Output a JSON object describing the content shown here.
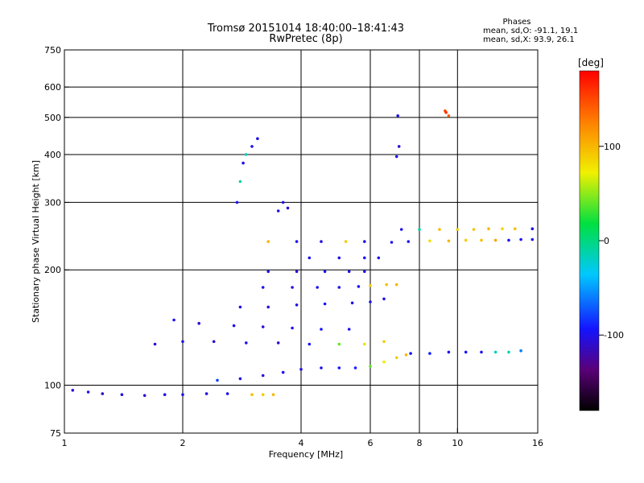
{
  "header": {
    "title_line1": "Tromsø 20151014 18:40:00–18:41:43",
    "title_line2": "RwPretec (8p)",
    "stats_label": "Phases",
    "stats_o": "mean, sd,O: -91.1, 19.1",
    "stats_x": "mean, sd,X: 93.9, 26.1"
  },
  "colorbar": {
    "label": "[deg]",
    "ticks": [
      {
        "value": 100,
        "label": "100"
      },
      {
        "value": 0,
        "label": "0"
      },
      {
        "value": -100,
        "label": "-100"
      }
    ],
    "range": [
      -180,
      180
    ]
  },
  "chart_data": {
    "type": "scatter",
    "xlabel": "Frequency [MHz]",
    "ylabel": "Stationary phase Virtual Height [km]",
    "xscale": "log",
    "yscale": "log",
    "xlim": [
      1,
      16
    ],
    "ylim": [
      75,
      750
    ],
    "xticks": [
      {
        "value": 1,
        "label": "1"
      },
      {
        "value": 2,
        "label": "2"
      },
      {
        "value": 4,
        "label": "4"
      },
      {
        "value": 6,
        "label": "6"
      },
      {
        "value": 8,
        "label": "8"
      },
      {
        "value": 10,
        "label": "10"
      },
      {
        "value": 16,
        "label": "16"
      }
    ],
    "yticks": [
      {
        "value": 75,
        "label": "75"
      },
      {
        "value": 100,
        "label": "100"
      },
      {
        "value": 200,
        "label": "200"
      },
      {
        "value": 300,
        "label": "300"
      },
      {
        "value": 400,
        "label": "400"
      },
      {
        "value": 500,
        "label": "500"
      },
      {
        "value": 600,
        "label": "600"
      },
      {
        "value": 750,
        "label": "750"
      }
    ],
    "grid_x": [
      2,
      4,
      6,
      8,
      10
    ],
    "grid_y": [
      100,
      200,
      300,
      400,
      500,
      600
    ],
    "grid": true,
    "color_variable": "phase [deg]",
    "series": [
      {
        "name": "",
        "points": [
          [
            1.05,
            97,
            -105
          ],
          [
            1.15,
            96,
            -100
          ],
          [
            1.25,
            95,
            -110
          ],
          [
            1.4,
            94.5,
            -100
          ],
          [
            1.6,
            94,
            -108
          ],
          [
            1.8,
            94.5,
            -102
          ],
          [
            2.0,
            94.5,
            -100
          ],
          [
            2.3,
            95,
            -105
          ],
          [
            2.6,
            95,
            -100
          ]
        ]
      },
      {
        "name": "",
        "points": [
          [
            3.0,
            94.5,
            95
          ],
          [
            3.2,
            94.5,
            90
          ],
          [
            3.4,
            94.5,
            100
          ]
        ]
      },
      {
        "name": "",
        "points": [
          [
            2.45,
            103,
            -80
          ],
          [
            2.8,
            104,
            -100
          ],
          [
            3.2,
            106,
            -105
          ],
          [
            3.6,
            108,
            -100
          ],
          [
            4.0,
            110,
            -105
          ],
          [
            4.5,
            111,
            -100
          ],
          [
            5.0,
            111,
            -95
          ],
          [
            5.5,
            111,
            -90
          ]
        ]
      },
      {
        "name": "",
        "points": [
          [
            6.0,
            112,
            40
          ],
          [
            6.5,
            115,
            75
          ],
          [
            7.0,
            118,
            90
          ],
          [
            7.4,
            120,
            100
          ]
        ]
      },
      {
        "name": "",
        "points": [
          [
            7.6,
            121,
            -100
          ],
          [
            8.5,
            121,
            -90
          ],
          [
            9.5,
            122,
            -100
          ],
          [
            10.5,
            122,
            -95
          ],
          [
            11.5,
            122,
            -100
          ],
          [
            12.5,
            122,
            -20
          ],
          [
            13.5,
            122,
            -15
          ],
          [
            14.5,
            123,
            -60
          ]
        ]
      },
      {
        "name": "",
        "points": [
          [
            1.7,
            128,
            -105
          ],
          [
            2.0,
            130,
            -100
          ],
          [
            2.4,
            130,
            -110
          ],
          [
            2.9,
            129,
            -100
          ],
          [
            3.5,
            129,
            -105
          ],
          [
            4.2,
            128,
            -95
          ],
          [
            5.0,
            128,
            40
          ],
          [
            5.8,
            128,
            80
          ],
          [
            6.5,
            130,
            90
          ]
        ]
      },
      {
        "name": "",
        "points": [
          [
            1.9,
            148,
            -100
          ],
          [
            2.2,
            145,
            -105
          ],
          [
            2.7,
            143,
            -100
          ],
          [
            3.2,
            142,
            -105
          ],
          [
            3.8,
            141,
            -100
          ],
          [
            4.5,
            140,
            -95
          ],
          [
            5.3,
            140,
            -100
          ]
        ]
      },
      {
        "name": "",
        "points": [
          [
            2.8,
            160,
            -100
          ],
          [
            3.3,
            160,
            -105
          ],
          [
            3.9,
            162,
            -100
          ],
          [
            4.6,
            163,
            -95
          ],
          [
            5.4,
            164,
            -100
          ],
          [
            6.0,
            165,
            -100
          ],
          [
            6.5,
            168,
            -100
          ]
        ]
      },
      {
        "name": "",
        "points": [
          [
            3.2,
            180,
            -100
          ],
          [
            3.8,
            180,
            -105
          ],
          [
            4.4,
            180,
            -100
          ],
          [
            5.0,
            180,
            -100
          ],
          [
            5.6,
            181,
            -95
          ],
          [
            6.0,
            182,
            90
          ],
          [
            6.6,
            183,
            95
          ],
          [
            7.0,
            183,
            100
          ]
        ]
      },
      {
        "name": "",
        "points": [
          [
            3.3,
            198,
            -100
          ],
          [
            3.9,
            198,
            -105
          ],
          [
            4.6,
            198,
            -95
          ],
          [
            5.3,
            198,
            -100
          ],
          [
            5.8,
            198,
            -100
          ]
        ]
      },
      {
        "name": "",
        "points": [
          [
            4.2,
            215,
            -100
          ],
          [
            5.0,
            215,
            -100
          ],
          [
            5.8,
            215,
            -95
          ],
          [
            6.3,
            215,
            -100
          ]
        ]
      },
      {
        "name": "",
        "points": [
          [
            3.3,
            237,
            100
          ],
          [
            3.9,
            237,
            -100
          ],
          [
            4.5,
            237,
            -105
          ],
          [
            5.2,
            237,
            90
          ],
          [
            5.8,
            237,
            -100
          ]
        ]
      },
      {
        "name": "",
        "points": [
          [
            6.8,
            236,
            -100
          ],
          [
            7.5,
            237,
            -100
          ],
          [
            8.5,
            238,
            80
          ],
          [
            9.5,
            238,
            100
          ],
          [
            10.5,
            239,
            90
          ],
          [
            11.5,
            239,
            95
          ],
          [
            12.5,
            239,
            110
          ],
          [
            13.5,
            239,
            -100
          ],
          [
            14.5,
            240,
            -95
          ],
          [
            15.5,
            240,
            -100
          ]
        ]
      },
      {
        "name": "",
        "points": [
          [
            7.2,
            255,
            -100
          ],
          [
            8.0,
            255,
            -10
          ],
          [
            9.0,
            255,
            100
          ],
          [
            10.0,
            255,
            90
          ],
          [
            11.0,
            255,
            95
          ],
          [
            12.0,
            256,
            100
          ],
          [
            13.0,
            256,
            85
          ],
          [
            14.0,
            256,
            95
          ],
          [
            15.5,
            256,
            -100
          ]
        ]
      },
      {
        "name": "",
        "points": [
          [
            2.75,
            300,
            -100
          ],
          [
            2.8,
            340,
            -10
          ],
          [
            2.85,
            380,
            -100
          ],
          [
            2.9,
            400,
            -20
          ],
          [
            3.0,
            420,
            -100
          ],
          [
            3.1,
            440,
            -100
          ]
        ]
      },
      {
        "name": "",
        "points": [
          [
            3.5,
            285,
            -100
          ],
          [
            3.6,
            300,
            -100
          ],
          [
            3.7,
            290,
            -105
          ]
        ]
      },
      {
        "name": "",
        "points": [
          [
            7.0,
            395,
            -100
          ],
          [
            7.1,
            420,
            -110
          ],
          [
            7.05,
            505,
            -100
          ]
        ]
      },
      {
        "name": "",
        "points": [
          [
            9.3,
            520,
            150
          ],
          [
            9.35,
            515,
            160
          ],
          [
            9.5,
            505,
            140
          ]
        ]
      }
    ]
  }
}
